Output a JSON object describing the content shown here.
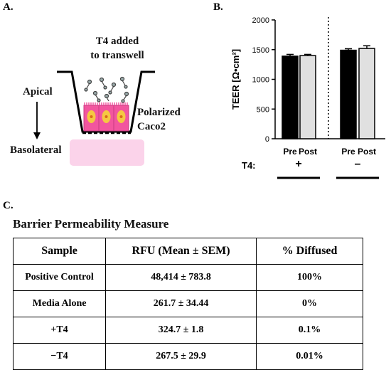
{
  "panel_a": {
    "label": "A.",
    "t4_line1": "T4 added",
    "t4_line2": "to transwell",
    "apical": "Apical",
    "basolateral": "Basolateral",
    "polarized_line1": "Polarized",
    "polarized_line2": "Caco2"
  },
  "panel_b": {
    "label": "B."
  },
  "panel_c": {
    "label": "C.",
    "title": "Barrier Permeability Measure",
    "headers": [
      "Sample",
      "RFU (Mean ± SEM)",
      "% Diffused"
    ],
    "rows": [
      {
        "sample": "Positive Control",
        "rfu": "48,414 ± 783.8",
        "diffused": "100%"
      },
      {
        "sample": "Media Alone",
        "rfu": "261.7 ± 34.44",
        "diffused": "0%"
      },
      {
        "sample": "+T4",
        "rfu": "324.7 ± 1.8",
        "diffused": "0.1%"
      },
      {
        "sample": "−T4",
        "rfu": "267.5 ± 29.9",
        "diffused": "0.01%"
      }
    ]
  },
  "colors": {
    "bar_pre": "#000000",
    "bar_post": "#e0e0e0",
    "cell_pink": "#f2559f",
    "nucleus": "#f5c842",
    "basolateral_pink": "#fbd3ea"
  },
  "chart_data": {
    "type": "bar",
    "ylabel": "TEER [Ω•cm²]",
    "ylim": [
      0,
      2000
    ],
    "yticks": [
      "0",
      "500",
      "1000",
      "1500",
      "2000"
    ],
    "categories": [
      "Pre",
      "Post",
      "Pre",
      "Post"
    ],
    "groups": [
      {
        "label": "+",
        "condition_label": "T4:"
      },
      {
        "label": "–"
      }
    ],
    "values": [
      1390,
      1400,
      1490,
      1520
    ],
    "errors": [
      30,
      20,
      25,
      45
    ],
    "group_of_bar": [
      0,
      0,
      1,
      1
    ],
    "fill_key_of_bar": [
      "bar_pre",
      "bar_post",
      "bar_pre",
      "bar_post"
    ],
    "divider_between_groups": "dotted",
    "grid": false
  }
}
